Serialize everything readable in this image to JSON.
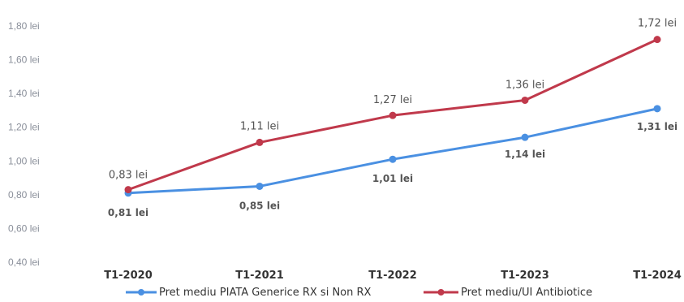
{
  "chart_data": {
    "type": "line",
    "title": "",
    "xlabel": "",
    "ylabel": "",
    "ylim": [
      0.4,
      1.8
    ],
    "yticks": [
      "1,80 lei",
      "1,60 lei",
      "1,40 lei",
      "1,20 lei",
      "1,00 lei",
      "0,80 lei",
      "0,60 lei",
      "0,40 lei"
    ],
    "ytick_values": [
      1.8,
      1.6,
      1.4,
      1.2,
      1.0,
      0.8,
      0.6,
      0.4
    ],
    "categories": [
      "T1-2020",
      "T1-2021",
      "T1-2022",
      "T1-2023",
      "T1-2024"
    ],
    "grid": false,
    "legend": "bottom",
    "series": [
      {
        "name": "Pret mediu PIATA Generice RX si Non RX",
        "color": "#4a90e2",
        "values": [
          0.81,
          0.85,
          1.01,
          1.14,
          1.31
        ],
        "labels": [
          "0,81 lei",
          "0,85 lei",
          "1,01 lei",
          "1,14 lei",
          "1,31 lei"
        ]
      },
      {
        "name": "Pret mediu/UI Antibiotice",
        "color": "#c0394b",
        "values": [
          0.83,
          1.11,
          1.27,
          1.36,
          1.72
        ],
        "labels": [
          "0,83 lei",
          "1,11 lei",
          "1,27 lei",
          "1,36 lei",
          "1,72 lei"
        ]
      }
    ]
  }
}
